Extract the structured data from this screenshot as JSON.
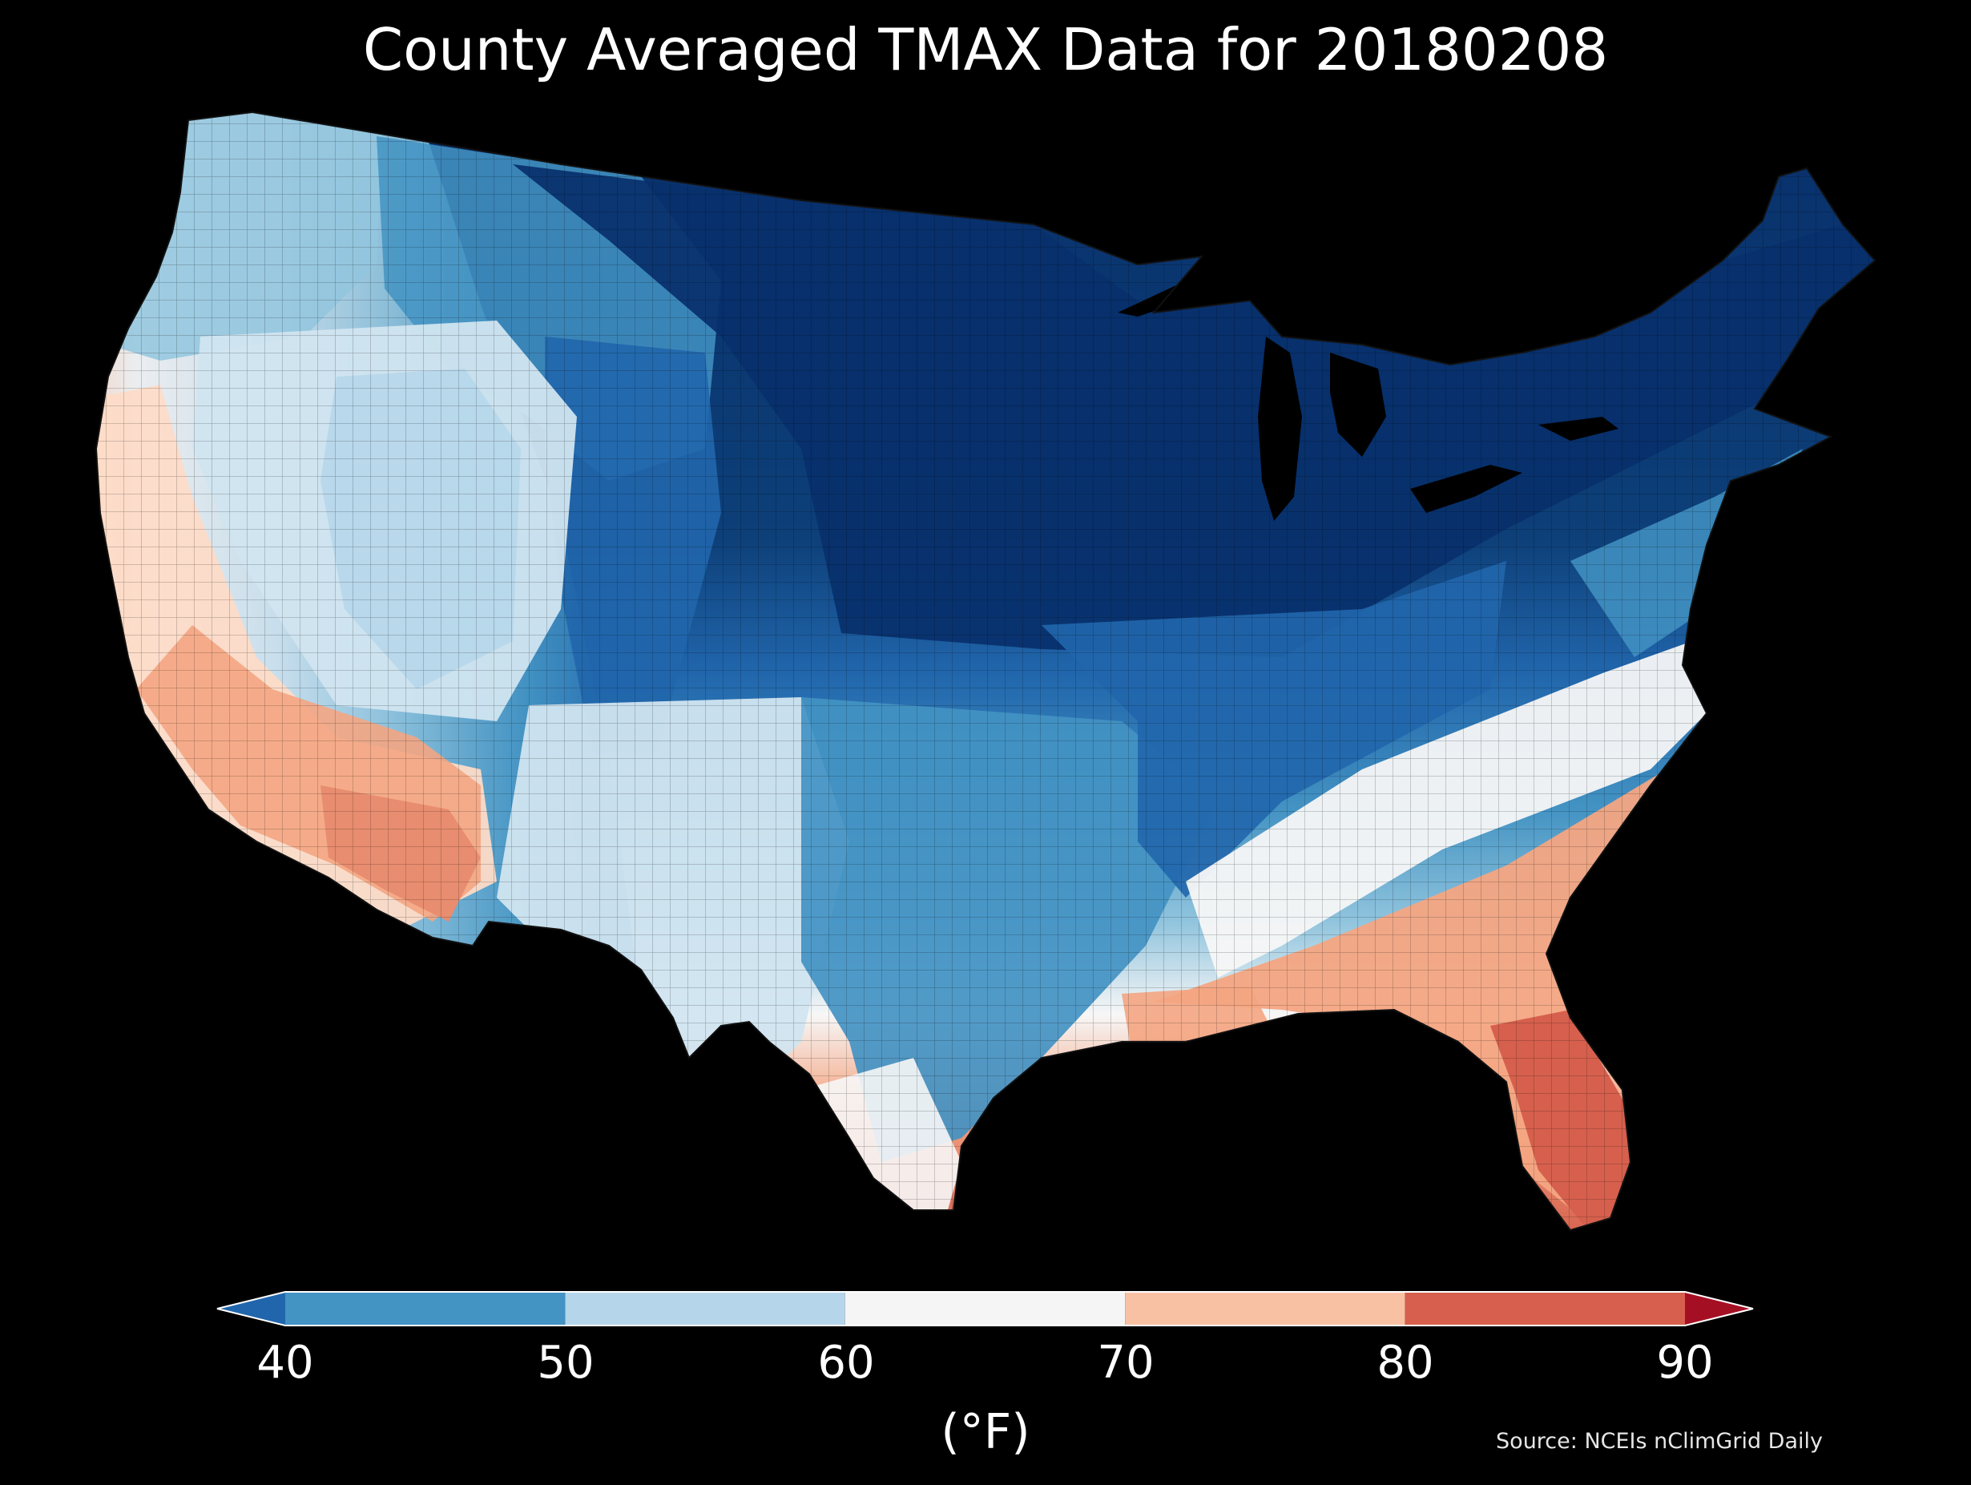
{
  "title": "County Averaged TMAX Data for 20180208",
  "legend": {
    "ticks": [
      "40",
      "50",
      "60",
      "70",
      "80",
      "90"
    ],
    "unit": "(°F)",
    "bins": [
      {
        "range": "<40",
        "color": "#2166ac"
      },
      {
        "range": "40-50",
        "color": "#4393c3"
      },
      {
        "range": "50-60",
        "color": "#b5d6ea"
      },
      {
        "range": "60-70",
        "color": "#f5f5f5"
      },
      {
        "range": "70-80",
        "color": "#f9c1a4"
      },
      {
        "range": "80-90",
        "color": "#d6604d"
      },
      {
        "range": ">90",
        "color": "#a50f24"
      }
    ]
  },
  "source": "Source: NCEIs nClimGrid Daily",
  "map": {
    "region": "Contiguous United States counties",
    "palette": {
      "deep_blue": "#08306b",
      "dark_blue": "#0d3f78",
      "blue": "#2166ac",
      "mid_blue": "#4393c3",
      "light_blue": "#92c5de",
      "pale_blue": "#d1e5f0",
      "white": "#f7f7f7",
      "pale_red": "#fddbc7",
      "salmon": "#f4a582",
      "red": "#d6604d",
      "lake": "#000000",
      "background": "#000000"
    }
  }
}
